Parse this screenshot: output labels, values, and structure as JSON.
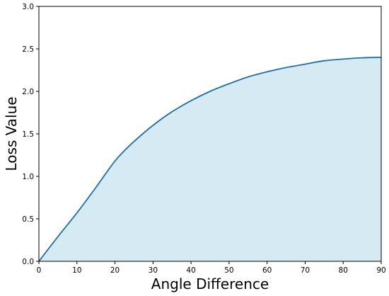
{
  "chart_data": {
    "type": "area",
    "title": "",
    "xlabel": "Angle Difference",
    "ylabel": "Loss Value",
    "xlim": [
      0,
      90
    ],
    "ylim": [
      0,
      3.0
    ],
    "x_ticks": [
      0,
      10,
      20,
      30,
      40,
      50,
      60,
      70,
      80,
      90
    ],
    "x_tick_labels": [
      "0",
      "10",
      "20",
      "30",
      "40",
      "50",
      "60",
      "70",
      "80",
      "90"
    ],
    "y_ticks": [
      0,
      0.5,
      1.0,
      1.5,
      2.0,
      2.5,
      3.0
    ],
    "y_tick_labels": [
      "0.0",
      "0.5",
      "1.0",
      "1.5",
      "2.0",
      "2.5",
      "3.0"
    ],
    "grid": false,
    "legend": "none",
    "line_color": "#1f6fa8",
    "fill_color": "#d6eaf3",
    "series": [
      {
        "x": [
          0,
          5,
          10,
          15,
          18,
          20,
          22,
          25,
          30,
          35,
          40,
          45,
          50,
          55,
          60,
          65,
          70,
          75,
          80,
          85,
          90
        ],
        "y": [
          0.0,
          0.29,
          0.57,
          0.87,
          1.06,
          1.18,
          1.28,
          1.41,
          1.6,
          1.76,
          1.89,
          2.0,
          2.09,
          2.17,
          2.23,
          2.28,
          2.32,
          2.36,
          2.38,
          2.395,
          2.4
        ]
      }
    ]
  }
}
